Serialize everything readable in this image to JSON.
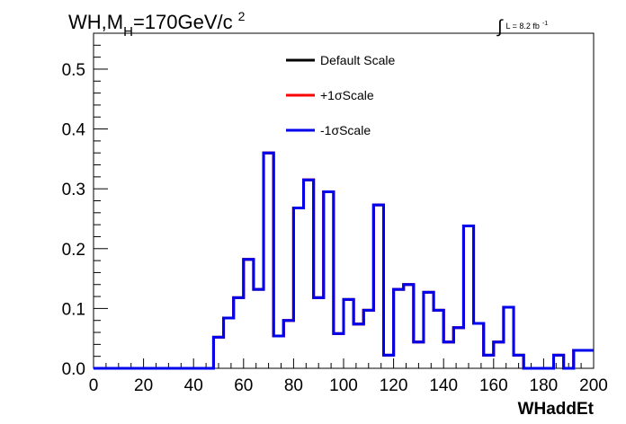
{
  "chart_data": {
    "type": "line",
    "title": {
      "main": "WH,M",
      "sub": "H",
      "rest": "=170GeV/c",
      "sup": "2"
    },
    "luminosity": {
      "integral": "∫",
      "text": "L = 8.2 fb",
      "sup": "-1"
    },
    "xlabel": "WHaddEt",
    "ylabel": "",
    "xlim": [
      0,
      200
    ],
    "ylim": [
      0,
      0.56
    ],
    "xticks": [
      0,
      20,
      40,
      60,
      80,
      100,
      120,
      140,
      160,
      180,
      200
    ],
    "xtick_labels": [
      "0",
      "20",
      "40",
      "60",
      "80",
      "100",
      "120",
      "140",
      "160",
      "180",
      "200"
    ],
    "yticks": [
      0.0,
      0.1,
      0.2,
      0.3,
      0.4,
      0.5
    ],
    "ytick_labels": [
      "0.0",
      "0.1",
      "0.2",
      "0.3",
      "0.4",
      "0.5"
    ],
    "grid": false,
    "legend_position": "top-center",
    "bin_width": 4,
    "bin_edges_start": 0,
    "series": [
      {
        "name": "Default Scale",
        "color": "#000000",
        "values": [
          0,
          0,
          0,
          0,
          0,
          0,
          0,
          0,
          0,
          0,
          0,
          0,
          0.052,
          0.084,
          0.118,
          0.182,
          0.132,
          0.36,
          0.054,
          0.08,
          0.268,
          0.315,
          0.118,
          0.295,
          0.058,
          0.115,
          0.074,
          0.097,
          0.273,
          0.022,
          0.132,
          0.14,
          0.044,
          0.127,
          0.097,
          0.044,
          0.068,
          0.238,
          0.075,
          0.022,
          0.044,
          0.102,
          0.022,
          0,
          0,
          0,
          0.022,
          0,
          0.03,
          0.03
        ]
      },
      {
        "name": "+1σScale",
        "color": "#ff0000",
        "values": [
          0,
          0,
          0,
          0,
          0,
          0,
          0,
          0,
          0,
          0,
          0,
          0,
          0.052,
          0.084,
          0.118,
          0.182,
          0.132,
          0.36,
          0.054,
          0.08,
          0.268,
          0.315,
          0.118,
          0.295,
          0.058,
          0.115,
          0.074,
          0.097,
          0.273,
          0.022,
          0.132,
          0.14,
          0.044,
          0.127,
          0.097,
          0.044,
          0.068,
          0.238,
          0.075,
          0.022,
          0.044,
          0.102,
          0.022,
          0,
          0,
          0,
          0.022,
          0,
          0.03,
          0.03
        ]
      },
      {
        "name": "-1σScale",
        "color": "#0000ee",
        "values": [
          0,
          0,
          0,
          0,
          0,
          0,
          0,
          0,
          0,
          0,
          0,
          0,
          0.052,
          0.084,
          0.118,
          0.182,
          0.132,
          0.36,
          0.054,
          0.08,
          0.268,
          0.315,
          0.118,
          0.295,
          0.058,
          0.115,
          0.074,
          0.097,
          0.273,
          0.022,
          0.132,
          0.14,
          0.044,
          0.127,
          0.097,
          0.044,
          0.068,
          0.238,
          0.075,
          0.022,
          0.044,
          0.102,
          0.022,
          0,
          0,
          0,
          0.022,
          0,
          0.03,
          0.03
        ]
      }
    ]
  }
}
